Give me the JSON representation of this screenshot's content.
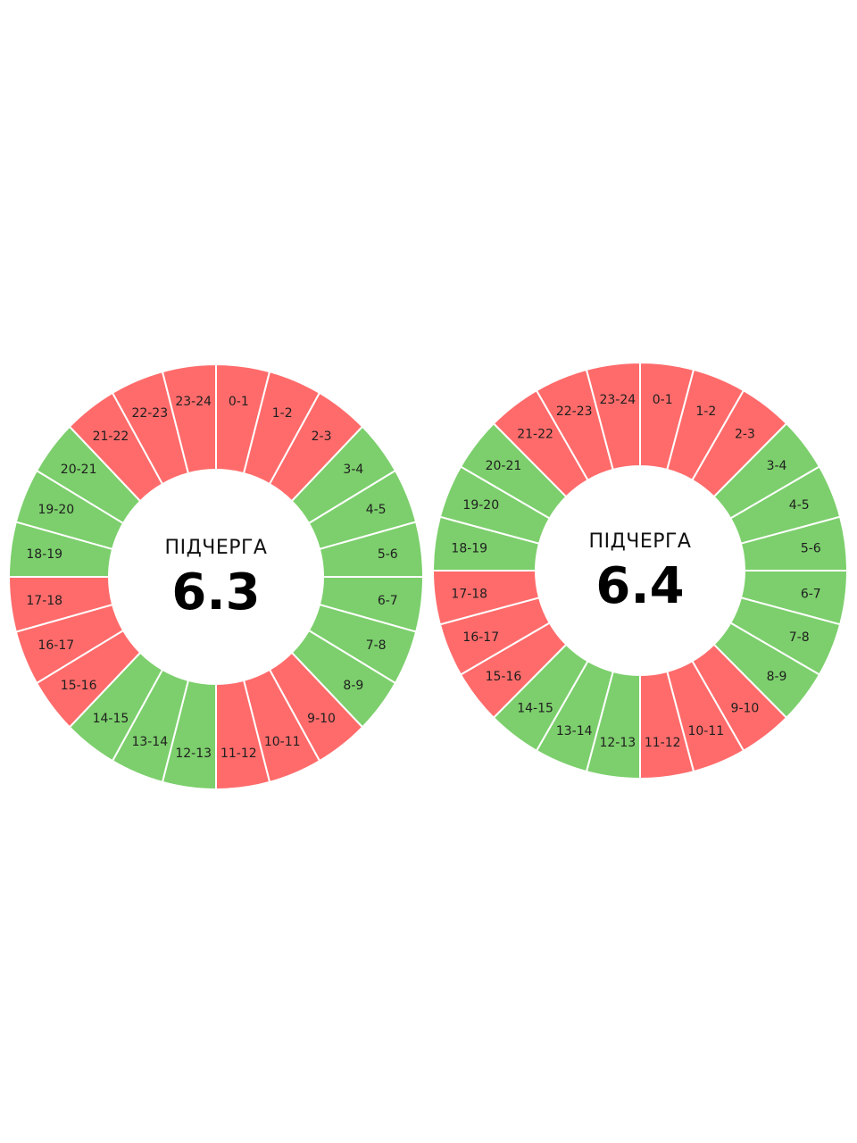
{
  "colors": {
    "off": "#ff6b6b",
    "on": "#7ccf6c",
    "divider": "#ffffff"
  },
  "chart_data": [
    {
      "type": "pie",
      "caption": "ПІДЧЕРГА",
      "value_label": "6.3",
      "categories": [
        "0-1",
        "1-2",
        "2-3",
        "3-4",
        "4-5",
        "5-6",
        "6-7",
        "7-8",
        "8-9",
        "9-10",
        "10-11",
        "11-12",
        "12-13",
        "13-14",
        "14-15",
        "15-16",
        "16-17",
        "17-18",
        "18-19",
        "19-20",
        "20-21",
        "21-22",
        "22-23",
        "23-24"
      ],
      "status": [
        "off",
        "off",
        "off",
        "on",
        "on",
        "on",
        "on",
        "on",
        "on",
        "off",
        "off",
        "off",
        "on",
        "on",
        "on",
        "off",
        "off",
        "off",
        "on",
        "on",
        "on",
        "off",
        "off",
        "off"
      ]
    },
    {
      "type": "pie",
      "caption": "ПІДЧЕРГА",
      "value_label": "6.4",
      "categories": [
        "0-1",
        "1-2",
        "2-3",
        "3-4",
        "4-5",
        "5-6",
        "6-7",
        "7-8",
        "8-9",
        "9-10",
        "10-11",
        "11-12",
        "12-13",
        "13-14",
        "14-15",
        "15-16",
        "16-17",
        "17-18",
        "18-19",
        "19-20",
        "20-21",
        "21-22",
        "22-23",
        "23-24"
      ],
      "status": [
        "off",
        "off",
        "off",
        "on",
        "on",
        "on",
        "on",
        "on",
        "on",
        "off",
        "off",
        "off",
        "on",
        "on",
        "on",
        "off",
        "off",
        "off",
        "on",
        "on",
        "on",
        "off",
        "off",
        "off"
      ]
    }
  ]
}
